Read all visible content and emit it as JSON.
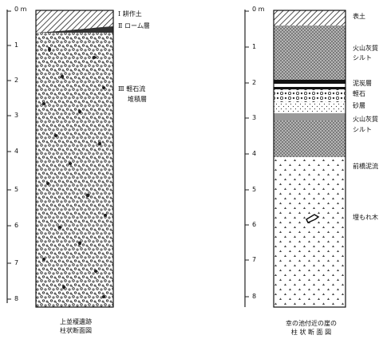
{
  "left_column": {
    "axis_ticks": [
      "0 m",
      "1",
      "2",
      "3",
      "4",
      "5",
      "6",
      "7",
      "8"
    ],
    "layers": [
      {
        "label": "Ⅰ 耕作土",
        "pattern": "hatch"
      },
      {
        "label": "Ⅱ ローム層",
        "pattern": "dark"
      },
      {
        "label": "Ⅲ 軽石流",
        "pattern": "pumice"
      },
      {
        "label": "堆積層",
        "pattern": "pumice"
      }
    ],
    "caption": [
      "上並榎遺跡",
      "柱状断面図"
    ]
  },
  "right_column": {
    "axis_ticks": [
      "0 m",
      "1",
      "2",
      "3",
      "4",
      "5",
      "6",
      "7",
      "8"
    ],
    "layers": [
      {
        "label": "表土",
        "pattern": "hatch"
      },
      {
        "label": "火山灰質",
        "pattern": "crosshatch"
      },
      {
        "label": "シルト",
        "pattern": "crosshatch"
      },
      {
        "label": "泥炭層",
        "pattern": "black"
      },
      {
        "label": "軽石",
        "pattern": "pumice"
      },
      {
        "label": "砂層",
        "pattern": "sand"
      },
      {
        "label": "火山灰質",
        "pattern": "crosshatch"
      },
      {
        "label": "シルト",
        "pattern": "crosshatch"
      },
      {
        "label": "前橋泥流",
        "pattern": "triangles"
      },
      {
        "label": "埋もれ木",
        "pattern": "triangles"
      }
    ],
    "caption": [
      "幸の池付近の崖の",
      "柱 状 断 面 図"
    ]
  }
}
